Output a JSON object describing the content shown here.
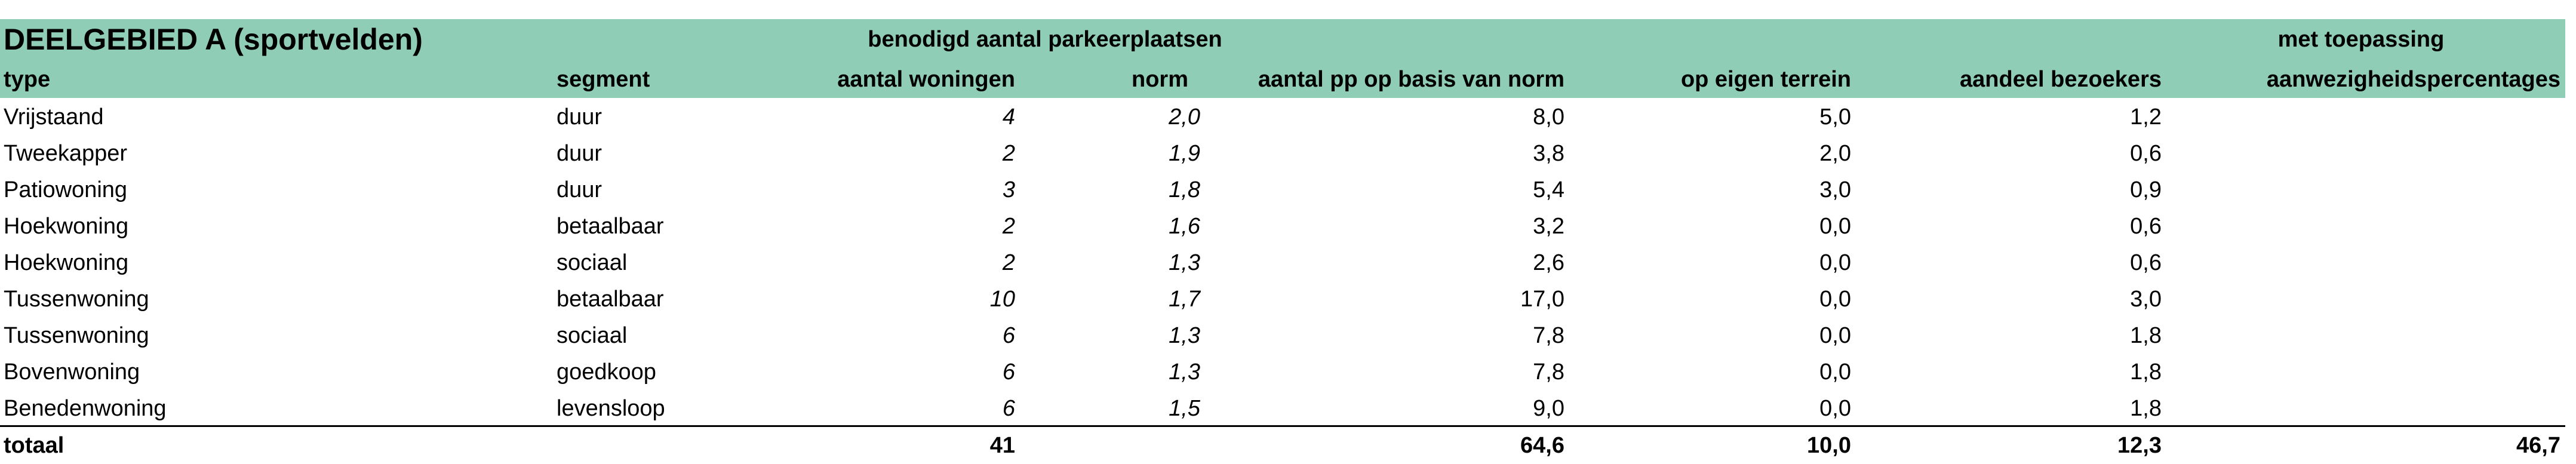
{
  "title": "DEELGEBIED A (sportvelden)",
  "group_header": "benodigd aantal parkeerplaatsen",
  "toepassing_header_line1": "met toepassing",
  "columns": {
    "type": "type",
    "segment": "segment",
    "aantal_woningen": "aantal woningen",
    "norm": "norm",
    "aantal_pp": "aantal pp op basis van norm",
    "op_eigen_terrein": "op eigen terrein",
    "aandeel_bezoekers": "aandeel bezoekers",
    "aanwezigheid": "aanwezigheidspercentages"
  },
  "rows": [
    {
      "type": "Vrijstaand",
      "segment": "duur",
      "aantal_woningen": "4",
      "norm": "2,0",
      "aantal_pp": "8,0",
      "op_eigen_terrein": "5,0",
      "aandeel_bezoekers": "1,2"
    },
    {
      "type": "Tweekapper",
      "segment": "duur",
      "aantal_woningen": "2",
      "norm": "1,9",
      "aantal_pp": "3,8",
      "op_eigen_terrein": "2,0",
      "aandeel_bezoekers": "0,6"
    },
    {
      "type": "Patiowoning",
      "segment": "duur",
      "aantal_woningen": "3",
      "norm": "1,8",
      "aantal_pp": "5,4",
      "op_eigen_terrein": "3,0",
      "aandeel_bezoekers": "0,9"
    },
    {
      "type": "Hoekwoning",
      "segment": "betaalbaar",
      "aantal_woningen": "2",
      "norm": "1,6",
      "aantal_pp": "3,2",
      "op_eigen_terrein": "0,0",
      "aandeel_bezoekers": "0,6"
    },
    {
      "type": "Hoekwoning",
      "segment": "sociaal",
      "aantal_woningen": "2",
      "norm": "1,3",
      "aantal_pp": "2,6",
      "op_eigen_terrein": "0,0",
      "aandeel_bezoekers": "0,6"
    },
    {
      "type": "Tussenwoning",
      "segment": "betaalbaar",
      "aantal_woningen": "10",
      "norm": "1,7",
      "aantal_pp": "17,0",
      "op_eigen_terrein": "0,0",
      "aandeel_bezoekers": "3,0"
    },
    {
      "type": "Tussenwoning",
      "segment": "sociaal",
      "aantal_woningen": "6",
      "norm": "1,3",
      "aantal_pp": "7,8",
      "op_eigen_terrein": "0,0",
      "aandeel_bezoekers": "1,8"
    },
    {
      "type": "Bovenwoning",
      "segment": "goedkoop",
      "aantal_woningen": "6",
      "norm": "1,3",
      "aantal_pp": "7,8",
      "op_eigen_terrein": "0,0",
      "aandeel_bezoekers": "1,8"
    },
    {
      "type": "Benedenwoning",
      "segment": "levensloop",
      "aantal_woningen": "6",
      "norm": "1,5",
      "aantal_pp": "9,0",
      "op_eigen_terrein": "0,0",
      "aandeel_bezoekers": "1,8"
    }
  ],
  "totals": {
    "label": "totaal",
    "aantal_woningen": "41",
    "aantal_pp": "64,6",
    "op_eigen_terrein": "10,0",
    "aandeel_bezoekers": "12,3",
    "aanwezigheid": "46,7"
  },
  "colors": {
    "header_fill": "#8fcdb7"
  }
}
